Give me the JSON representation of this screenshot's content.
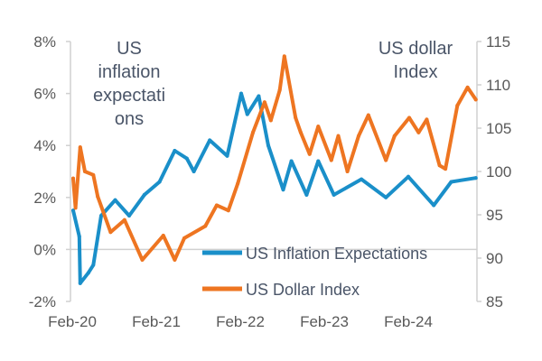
{
  "chart_data": {
    "type": "line",
    "title": "",
    "xlabel": "",
    "x_ticks": [
      "Feb-20",
      "Feb-21",
      "Feb-22",
      "Feb-23",
      "Feb-24"
    ],
    "y_left": {
      "label": "US inflation expectations",
      "label_lines": [
        "US",
        "inflation",
        "expectati",
        "ons"
      ],
      "ticks": [
        "8%",
        "6%",
        "4%",
        "2%",
        "0%",
        "-2%"
      ],
      "ylim": [
        -2,
        8
      ]
    },
    "y_right": {
      "label": "US dollar Index",
      "label_lines": [
        "US dollar",
        "Index"
      ],
      "ticks": [
        "115",
        "110",
        "105",
        "100",
        "95",
        "90",
        "85"
      ],
      "ylim": [
        85,
        115
      ]
    },
    "grid": false,
    "legend_placement": "bottom-right",
    "series": [
      {
        "name": "US Inflation Expectations",
        "axis": "left",
        "color": "#1a8fc9",
        "x": [
          "2020-02-05",
          "2020-03-01",
          "2020-03-05",
          "2020-04-10",
          "2020-05-01",
          "2020-06-05",
          "2020-08-05",
          "2020-10-05",
          "2020-12-10",
          "2021-02-15",
          "2021-04-20",
          "2021-06-12",
          "2021-07-12",
          "2021-09-20",
          "2021-12-05",
          "2022-02-05",
          "2022-03-01",
          "2022-04-20",
          "2022-06-01",
          "2022-08-05",
          "2022-09-10",
          "2022-11-15",
          "2023-01-05",
          "2023-03-12",
          "2023-07-10",
          "2023-10-25",
          "2024-02-01",
          "2024-05-20",
          "2024-08-05",
          "2024-11-20"
        ],
        "values": [
          1.5,
          0.5,
          -1.3,
          -0.9,
          -0.6,
          1.3,
          1.9,
          1.3,
          2.1,
          2.6,
          3.8,
          3.5,
          3.0,
          4.2,
          3.6,
          6.0,
          5.2,
          5.9,
          4.0,
          2.3,
          3.4,
          2.1,
          3.4,
          2.1,
          2.7,
          2.0,
          2.8,
          1.7,
          2.6,
          2.75
        ]
      },
      {
        "name": "US Dollar Index",
        "axis": "right",
        "color": "#ee7521",
        "x": [
          "2020-02-05",
          "2020-02-15",
          "2020-03-05",
          "2020-03-25",
          "2020-05-01",
          "2020-05-20",
          "2020-07-15",
          "2020-09-15",
          "2020-12-01",
          "2021-03-01",
          "2021-04-20",
          "2021-06-01",
          "2021-09-01",
          "2021-10-20",
          "2021-12-10",
          "2022-01-20",
          "2022-03-25",
          "2022-05-15",
          "2022-06-12",
          "2022-07-20",
          "2022-08-10",
          "2022-09-28",
          "2022-10-20",
          "2022-11-28",
          "2023-01-05",
          "2023-03-01",
          "2023-04-01",
          "2023-05-10",
          "2023-06-28",
          "2023-08-10",
          "2023-10-25",
          "2023-12-02",
          "2024-02-05",
          "2024-03-15",
          "2024-04-20",
          "2024-06-15",
          "2024-07-10",
          "2024-09-01",
          "2024-10-15",
          "2024-11-20"
        ],
        "values": [
          99.2,
          95.8,
          102.8,
          100,
          99.6,
          97.1,
          93.0,
          94.4,
          89.8,
          92.6,
          89.8,
          92.3,
          93.7,
          96.1,
          95.5,
          98.6,
          104.5,
          108,
          105.9,
          109.4,
          113.3,
          106.2,
          104.5,
          102,
          105.2,
          101.3,
          104.1,
          100,
          104.1,
          106.5,
          101.3,
          104.1,
          106.2,
          104.5,
          106,
          100.7,
          100.3,
          107.6,
          109.7,
          108.3
        ]
      }
    ]
  }
}
